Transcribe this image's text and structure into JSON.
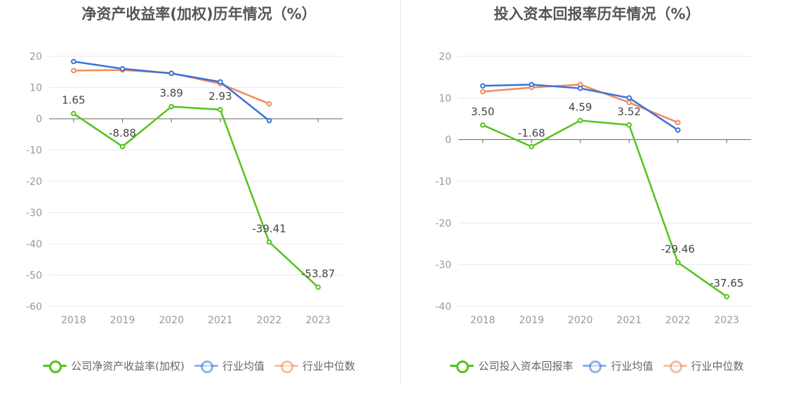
{
  "colors": {
    "company": "#52c41a",
    "industry_avg": "#3a72d8",
    "industry_median": "#f08a5d",
    "grid": "#e6e9f0",
    "axis": "#666666",
    "tick_label": "#999999",
    "data_label": "#444444"
  },
  "chart_data": [
    {
      "type": "line",
      "title": "净资产收益率(加权)历年情况（%）",
      "categories": [
        "2018",
        "2019",
        "2020",
        "2021",
        "2022",
        "2023"
      ],
      "ylim": [
        -60,
        20
      ],
      "yticks": [
        20,
        10,
        0,
        -10,
        -20,
        -30,
        -40,
        -50,
        -60
      ],
      "grid": true,
      "legend_position": "bottom",
      "series": [
        {
          "name": "公司净资产收益率(加权)",
          "values": [
            1.65,
            -8.88,
            3.89,
            2.93,
            -39.41,
            -53.87
          ],
          "labels": [
            "1.65",
            "-8.88",
            "3.89",
            "2.93",
            "-39.41",
            "-53.87"
          ]
        },
        {
          "name": "行业均值",
          "values": [
            18.3,
            16.0,
            14.5,
            11.8,
            -0.6,
            null
          ]
        },
        {
          "name": "行业中位数",
          "values": [
            15.4,
            15.6,
            14.6,
            11.2,
            4.8,
            null
          ]
        }
      ]
    },
    {
      "type": "line",
      "title": "投入资本回报率历年情况（%）",
      "categories": [
        "2018",
        "2019",
        "2020",
        "2021",
        "2022",
        "2023"
      ],
      "ylim": [
        -40,
        20
      ],
      "yticks": [
        20,
        10,
        0,
        -10,
        -20,
        -30,
        -40
      ],
      "grid": true,
      "legend_position": "bottom",
      "series": [
        {
          "name": "公司投入资本回报率",
          "values": [
            3.5,
            -1.68,
            4.59,
            3.52,
            -29.46,
            -37.65
          ],
          "labels": [
            "3.50",
            "-1.68",
            "4.59",
            "3.52",
            "-29.46",
            "-37.65"
          ]
        },
        {
          "name": "行业均值",
          "values": [
            12.9,
            13.2,
            12.3,
            10.0,
            2.3,
            null
          ]
        },
        {
          "name": "行业中位数",
          "values": [
            11.5,
            12.5,
            13.2,
            8.9,
            4.1,
            null
          ]
        }
      ]
    }
  ]
}
